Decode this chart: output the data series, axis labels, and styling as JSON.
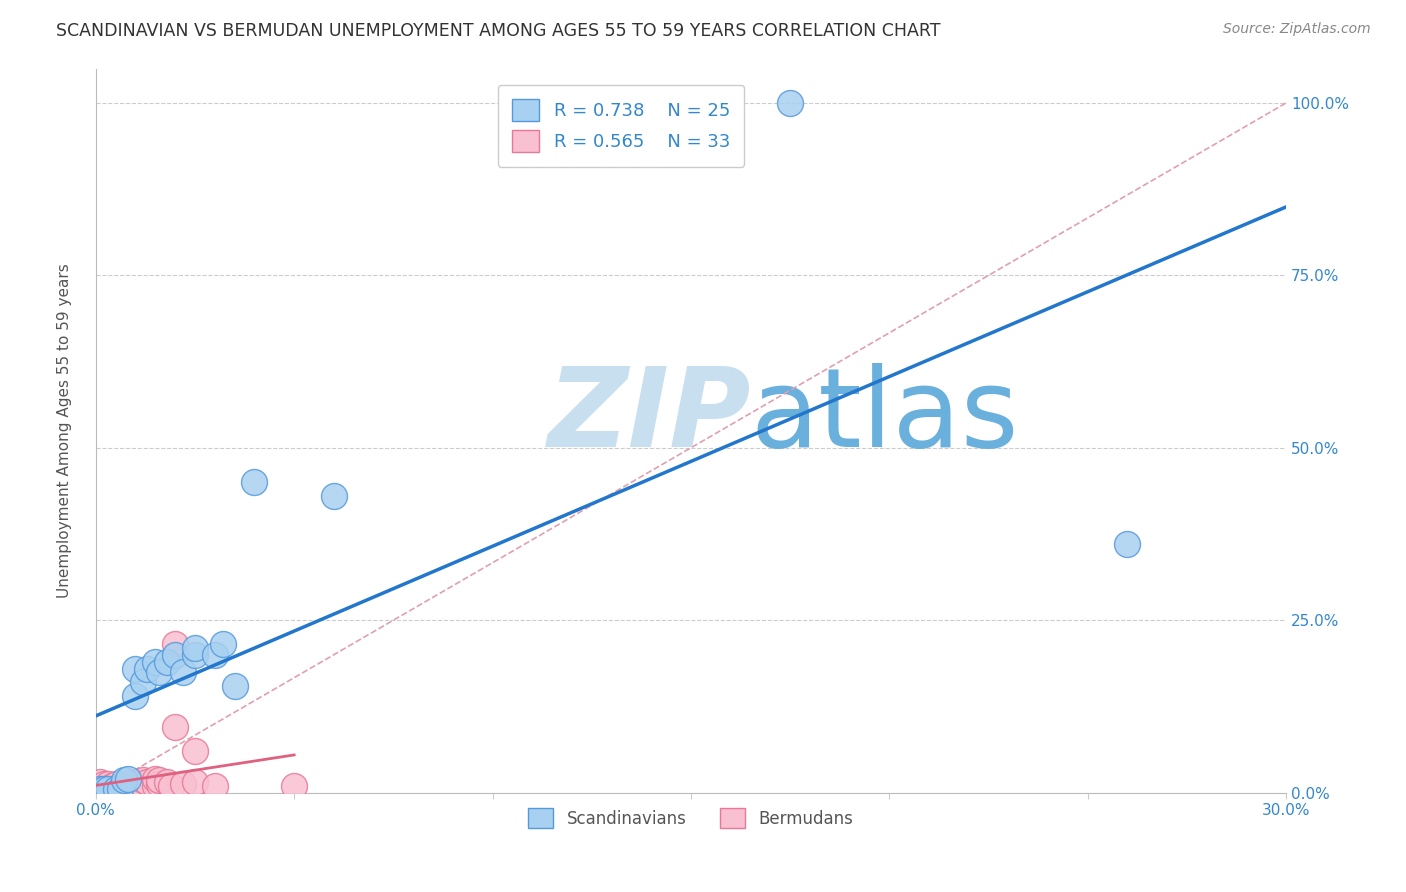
{
  "title": "SCANDINAVIAN VS BERMUDAN UNEMPLOYMENT AMONG AGES 55 TO 59 YEARS CORRELATION CHART",
  "source": "Source: ZipAtlas.com",
  "ylabel": "Unemployment Among Ages 55 to 59 years",
  "xlim": [
    0.0,
    0.3
  ],
  "ylim": [
    0.0,
    1.05
  ],
  "x_ticks": [
    0.0,
    0.05,
    0.1,
    0.15,
    0.2,
    0.25,
    0.3
  ],
  "y_ticks": [
    0.0,
    0.25,
    0.5,
    0.75,
    1.0
  ],
  "y_tick_labels": [
    "0.0%",
    "25.0%",
    "50.0%",
    "75.0%",
    "100.0%"
  ],
  "scand_color": "#a8d0f0",
  "scand_edge_color": "#5599dd",
  "berm_color": "#f8c0d0",
  "berm_edge_color": "#e87898",
  "line_scand_color": "#2277cc",
  "line_berm_color": "#e06080",
  "diag_color": "#e0a0b0",
  "R_scand": 0.738,
  "N_scand": 25,
  "R_berm": 0.565,
  "N_berm": 33,
  "scand_x": [
    0.001,
    0.002,
    0.003,
    0.005,
    0.006,
    0.007,
    0.008,
    0.01,
    0.01,
    0.012,
    0.013,
    0.015,
    0.016,
    0.018,
    0.02,
    0.022,
    0.025,
    0.025,
    0.03,
    0.032,
    0.035,
    0.04,
    0.06,
    0.175,
    0.26
  ],
  "scand_y": [
    0.005,
    0.005,
    0.005,
    0.005,
    0.005,
    0.018,
    0.02,
    0.14,
    0.18,
    0.16,
    0.18,
    0.19,
    0.175,
    0.19,
    0.2,
    0.175,
    0.2,
    0.21,
    0.2,
    0.215,
    0.155,
    0.45,
    0.43,
    1.0,
    0.36
  ],
  "berm_x": [
    0.0,
    0.0,
    0.001,
    0.001,
    0.002,
    0.002,
    0.003,
    0.003,
    0.004,
    0.005,
    0.005,
    0.006,
    0.007,
    0.008,
    0.009,
    0.01,
    0.01,
    0.012,
    0.012,
    0.013,
    0.015,
    0.015,
    0.016,
    0.016,
    0.018,
    0.019,
    0.02,
    0.02,
    0.022,
    0.025,
    0.025,
    0.03,
    0.05
  ],
  "berm_y": [
    0.005,
    0.01,
    0.005,
    0.015,
    0.005,
    0.012,
    0.005,
    0.012,
    0.01,
    0.005,
    0.012,
    0.01,
    0.01,
    0.012,
    0.01,
    0.005,
    0.015,
    0.01,
    0.018,
    0.015,
    0.01,
    0.02,
    0.012,
    0.018,
    0.015,
    0.01,
    0.215,
    0.095,
    0.012,
    0.015,
    0.06,
    0.01,
    0.01
  ],
  "watermark_zip": "ZIP",
  "watermark_atlas": "atlas",
  "watermark_color_zip": "#c8dff0",
  "watermark_color_atlas": "#6ab0dd"
}
